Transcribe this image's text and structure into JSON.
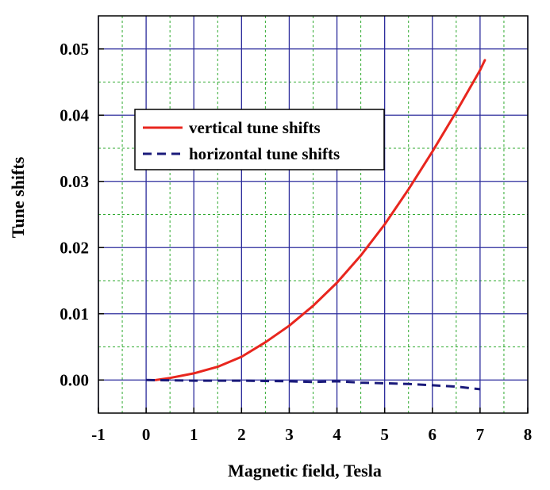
{
  "chart_data": {
    "type": "line",
    "title": "",
    "xlabel": "Magnetic field, Tesla",
    "ylabel": "Tune shifts",
    "xlim": [
      -1,
      8
    ],
    "ylim": [
      -0.005,
      0.055
    ],
    "x_ticks": [
      "-1",
      "0",
      "1",
      "2",
      "3",
      "4",
      "5",
      "6",
      "7",
      "8"
    ],
    "y_ticks": [
      "0.00",
      "0.01",
      "0.02",
      "0.03",
      "0.04",
      "0.05"
    ],
    "grid": true,
    "legend_position": "upper-left",
    "series": [
      {
        "name": "vertical  tune shifts",
        "color": "#e8261e",
        "style": "solid",
        "x": [
          0.2,
          0.5,
          1.0,
          1.5,
          2.0,
          2.5,
          3.0,
          3.5,
          4.0,
          4.5,
          5.0,
          5.5,
          6.0,
          6.5,
          7.0,
          7.1
        ],
        "y": [
          0.0,
          0.0003,
          0.001,
          0.002,
          0.0035,
          0.0057,
          0.0082,
          0.0112,
          0.0147,
          0.0188,
          0.0235,
          0.0288,
          0.0345,
          0.0405,
          0.0468,
          0.0483
        ]
      },
      {
        "name": "horizontal tune shifts",
        "color": "#1a1a7a",
        "style": "dashed",
        "x": [
          0.0,
          1.0,
          2.0,
          3.0,
          3.5,
          4.0,
          4.5,
          5.0,
          5.5,
          6.0,
          6.5,
          7.0
        ],
        "y": [
          0.0,
          -0.0001,
          -0.0001,
          -0.0002,
          -0.0003,
          -0.0002,
          -0.0004,
          -0.0005,
          -0.0006,
          -0.0008,
          -0.001,
          -0.0014
        ]
      }
    ]
  }
}
